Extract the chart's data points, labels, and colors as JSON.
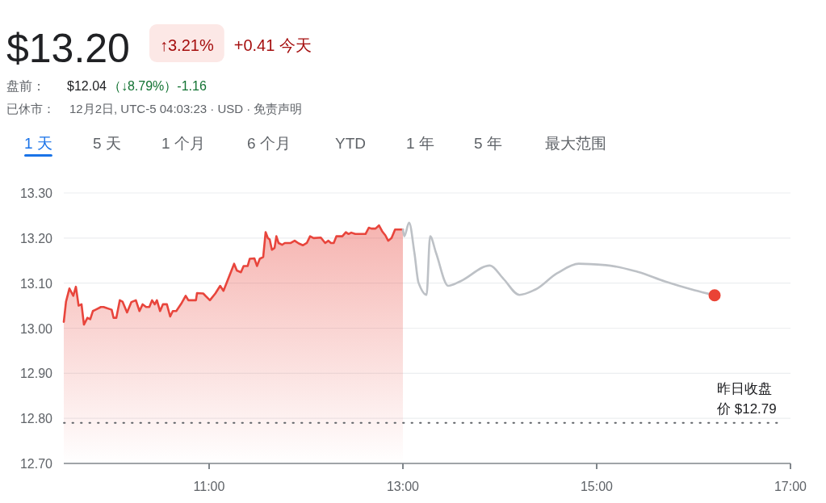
{
  "chart_data": {
    "type": "line",
    "title": "$13.20",
    "annotations": [
      "↑3.21%",
      "+0.41 今天",
      "盘前：",
      "$12.04",
      "（↓8.79%）-1.16",
      "已休市：",
      "12月2日, UTC-5 04:03:23 · USD · 免责声明",
      "1 天",
      "5 天",
      "1 个月",
      "6 个月",
      "YTD",
      "1 年",
      "5 年",
      "最大范围"
    ],
    "xlim": [
      9.5,
      17
    ],
    "xticks": [
      {
        "value": 11,
        "label": "11:00"
      },
      {
        "value": 13,
        "label": "13:00"
      },
      {
        "value": 15,
        "label": "15:00"
      },
      {
        "value": 17,
        "label": "17:00"
      }
    ],
    "ylim": [
      12.7,
      13.3
    ],
    "yticks": [
      {
        "value": 12.7,
        "label": "12.70"
      },
      {
        "value": 12.8,
        "label": "12.80"
      },
      {
        "value": 12.9,
        "label": "12.90"
      },
      {
        "value": 13.0,
        "label": "13.00"
      },
      {
        "value": 13.1,
        "label": "13.10"
      },
      {
        "value": 13.2,
        "label": "13.20"
      },
      {
        "value": 13.3,
        "label": "13.30"
      }
    ],
    "grid": "y",
    "ref_lines": [
      {
        "axis": "y",
        "value": 12.79,
        "label": "昨日收盘价 $12.79",
        "line_style": "dotted",
        "color": "#5f6368"
      }
    ],
    "series": [
      {
        "type": "area",
        "color": "#e8453c",
        "x": [
          9.5,
          9.523,
          9.558,
          9.598,
          9.625,
          9.653,
          9.683,
          9.708,
          9.744,
          9.773,
          9.8,
          9.828,
          9.883,
          9.911,
          9.994,
          10.014,
          10.042,
          10.078,
          10.106,
          10.153,
          10.198,
          10.244,
          10.281,
          10.314,
          10.35,
          10.383,
          10.411,
          10.439,
          10.461,
          10.494,
          10.523,
          10.564,
          10.598,
          10.625,
          10.661,
          10.717,
          10.758,
          10.786,
          10.864,
          10.875,
          10.939,
          11.008,
          11.064,
          11.114,
          11.148,
          11.203,
          11.258,
          11.286,
          11.328,
          11.356,
          11.398,
          11.419,
          11.467,
          11.494,
          11.523,
          11.558,
          11.583,
          11.606,
          11.625,
          11.648,
          11.675,
          11.694,
          11.717,
          11.753,
          11.781,
          11.842,
          11.883,
          11.925,
          11.967,
          12.008,
          12.042,
          12.078,
          12.153,
          12.198,
          12.231,
          12.258,
          12.286,
          12.314,
          12.375,
          12.411,
          12.439,
          12.467,
          12.508,
          12.614,
          12.648,
          12.675,
          12.717,
          12.753,
          12.786,
          12.819,
          12.848,
          12.883,
          12.919,
          13.0
        ],
        "values": [
          13.014,
          13.059,
          13.088,
          13.072,
          13.092,
          13.05,
          13.053,
          13.008,
          13.023,
          13.02,
          13.038,
          13.041,
          13.047,
          13.047,
          13.041,
          13.023,
          13.023,
          13.062,
          13.059,
          13.035,
          13.058,
          13.062,
          13.038,
          13.053,
          13.047,
          13.047,
          13.062,
          13.053,
          13.062,
          13.038,
          13.053,
          13.053,
          13.026,
          13.038,
          13.038,
          13.056,
          13.072,
          13.062,
          13.062,
          13.078,
          13.077,
          13.062,
          13.077,
          13.094,
          13.083,
          13.113,
          13.143,
          13.128,
          13.124,
          13.138,
          13.138,
          13.154,
          13.155,
          13.138,
          13.154,
          13.158,
          13.213,
          13.2,
          13.197,
          13.174,
          13.178,
          13.204,
          13.189,
          13.185,
          13.189,
          13.189,
          13.194,
          13.188,
          13.184,
          13.189,
          13.204,
          13.2,
          13.201,
          13.189,
          13.194,
          13.189,
          13.189,
          13.204,
          13.204,
          13.213,
          13.209,
          13.212,
          13.209,
          13.209,
          13.223,
          13.221,
          13.221,
          13.228,
          13.215,
          13.206,
          13.194,
          13.2,
          13.219,
          13.219
        ]
      },
      {
        "type": "line",
        "color": "#bdc1c6",
        "x": [
          13.0,
          13.014,
          13.064,
          13.119,
          13.161,
          13.244,
          13.281,
          13.342,
          13.467,
          13.592,
          13.898,
          14.036,
          14.203,
          14.369,
          14.592,
          14.814,
          15.092,
          15.425,
          15.703,
          15.981,
          16.217
        ],
        "values": [
          13.219,
          13.204,
          13.234,
          13.167,
          13.101,
          13.074,
          13.204,
          13.167,
          13.094,
          13.104,
          13.139,
          13.11,
          13.074,
          13.086,
          13.122,
          13.143,
          13.14,
          13.125,
          13.104,
          13.086,
          13.073
        ]
      },
      {
        "type": "scatter",
        "color": "#ea4335",
        "marker": "circle",
        "x": [
          16.217
        ],
        "values": [
          13.073
        ]
      }
    ]
  }
}
